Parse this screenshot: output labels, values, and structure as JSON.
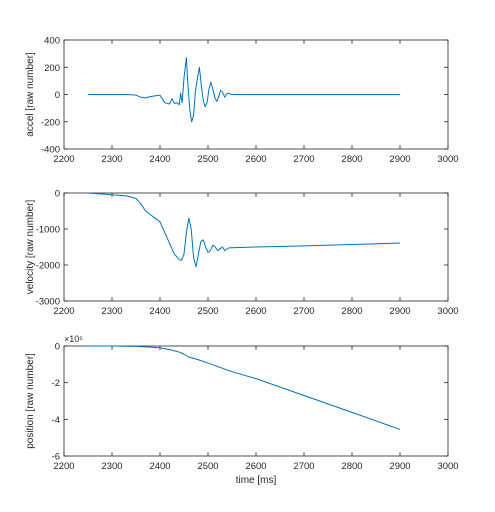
{
  "figure": {
    "background": "#ffffff",
    "axis_color": "#262626",
    "line_color": "#0072BD"
  },
  "chart_data": [
    {
      "type": "line",
      "title": "",
      "xlabel": "",
      "ylabel": "accel [raw number]",
      "xlim": [
        2200,
        3000
      ],
      "ylim": [
        -400,
        400
      ],
      "xticks": [
        2200,
        2300,
        2400,
        2500,
        2600,
        2700,
        2800,
        2900,
        3000
      ],
      "yticks": [
        -400,
        -200,
        0,
        200,
        400
      ],
      "xtick_labels": [
        "2200",
        "2300",
        "2400",
        "2500",
        "2600",
        "2700",
        "2800",
        "2900",
        "3000"
      ],
      "ytick_labels": [
        "-400",
        "-200",
        "0",
        "200",
        "400"
      ],
      "grid": false,
      "series": [
        {
          "x": [
            2250,
            2300,
            2330,
            2350,
            2360,
            2370,
            2380,
            2390,
            2400,
            2410,
            2420,
            2425,
            2430,
            2435,
            2440,
            2443,
            2446,
            2450,
            2455,
            2458,
            2462,
            2466,
            2470,
            2474,
            2478,
            2482,
            2486,
            2490,
            2494,
            2498,
            2502,
            2506,
            2510,
            2514,
            2518,
            2522,
            2526,
            2530,
            2535,
            2540,
            2545,
            2550,
            2600,
            2700,
            2800,
            2900
          ],
          "y": [
            0,
            0,
            0,
            -5,
            -20,
            -25,
            -15,
            -10,
            -5,
            -60,
            -70,
            -30,
            -65,
            -60,
            -75,
            10,
            -60,
            120,
            270,
            80,
            -110,
            -200,
            -150,
            30,
            120,
            200,
            70,
            -40,
            -90,
            -60,
            40,
            90,
            40,
            -20,
            -50,
            -20,
            30,
            20,
            -20,
            10,
            5,
            0,
            0,
            0,
            0,
            0
          ]
        }
      ]
    },
    {
      "type": "line",
      "title": "",
      "xlabel": "",
      "ylabel": "velocity [raw number]",
      "xlim": [
        2200,
        3000
      ],
      "ylim": [
        -3000,
        0
      ],
      "xticks": [
        2200,
        2300,
        2400,
        2500,
        2600,
        2700,
        2800,
        2900,
        3000
      ],
      "yticks": [
        -3000,
        -2000,
        -1000,
        0
      ],
      "xtick_labels": [
        "2200",
        "2300",
        "2400",
        "2500",
        "2600",
        "2700",
        "2800",
        "2900",
        "3000"
      ],
      "ytick_labels": [
        "-3000",
        "-2000",
        "-1000",
        "0"
      ],
      "grid": false,
      "series": [
        {
          "x": [
            2250,
            2300,
            2330,
            2350,
            2360,
            2370,
            2380,
            2390,
            2400,
            2410,
            2420,
            2430,
            2440,
            2445,
            2450,
            2455,
            2460,
            2465,
            2470,
            2475,
            2480,
            2485,
            2490,
            2495,
            2500,
            2505,
            2510,
            2515,
            2520,
            2525,
            2530,
            2535,
            2540,
            2545,
            2550,
            2600,
            2700,
            2800,
            2900
          ],
          "y": [
            0,
            -50,
            -80,
            -150,
            -300,
            -500,
            -600,
            -700,
            -800,
            -1100,
            -1400,
            -1700,
            -1850,
            -1870,
            -1700,
            -1100,
            -700,
            -1000,
            -1800,
            -2050,
            -1700,
            -1350,
            -1300,
            -1500,
            -1650,
            -1600,
            -1450,
            -1500,
            -1600,
            -1550,
            -1500,
            -1600,
            -1550,
            -1520,
            -1520,
            -1500,
            -1470,
            -1430,
            -1390
          ]
        }
      ]
    },
    {
      "type": "line",
      "title": "",
      "xlabel": "time [ms]",
      "ylabel": "position [raw number]",
      "exponent_label": "×10⁵",
      "xlim": [
        2200,
        3000
      ],
      "ylim": [
        -6,
        0
      ],
      "xticks": [
        2200,
        2300,
        2400,
        2500,
        2600,
        2700,
        2800,
        2900,
        3000
      ],
      "yticks": [
        -6,
        -4,
        -2,
        0
      ],
      "xtick_labels": [
        "2200",
        "2300",
        "2400",
        "2500",
        "2600",
        "2700",
        "2800",
        "2900",
        "3000"
      ],
      "ytick_labels": [
        "-6",
        "-4",
        "-2",
        "0"
      ],
      "grid": false,
      "series": [
        {
          "x": [
            2250,
            2300,
            2350,
            2380,
            2400,
            2420,
            2440,
            2450,
            2460,
            2480,
            2500,
            2550,
            2600,
            2700,
            2800,
            2900
          ],
          "y": [
            0,
            0,
            -0.02,
            -0.06,
            -0.1,
            -0.2,
            -0.33,
            -0.45,
            -0.6,
            -0.75,
            -0.93,
            -1.4,
            -1.78,
            -2.7,
            -3.62,
            -4.55
          ]
        }
      ]
    }
  ]
}
